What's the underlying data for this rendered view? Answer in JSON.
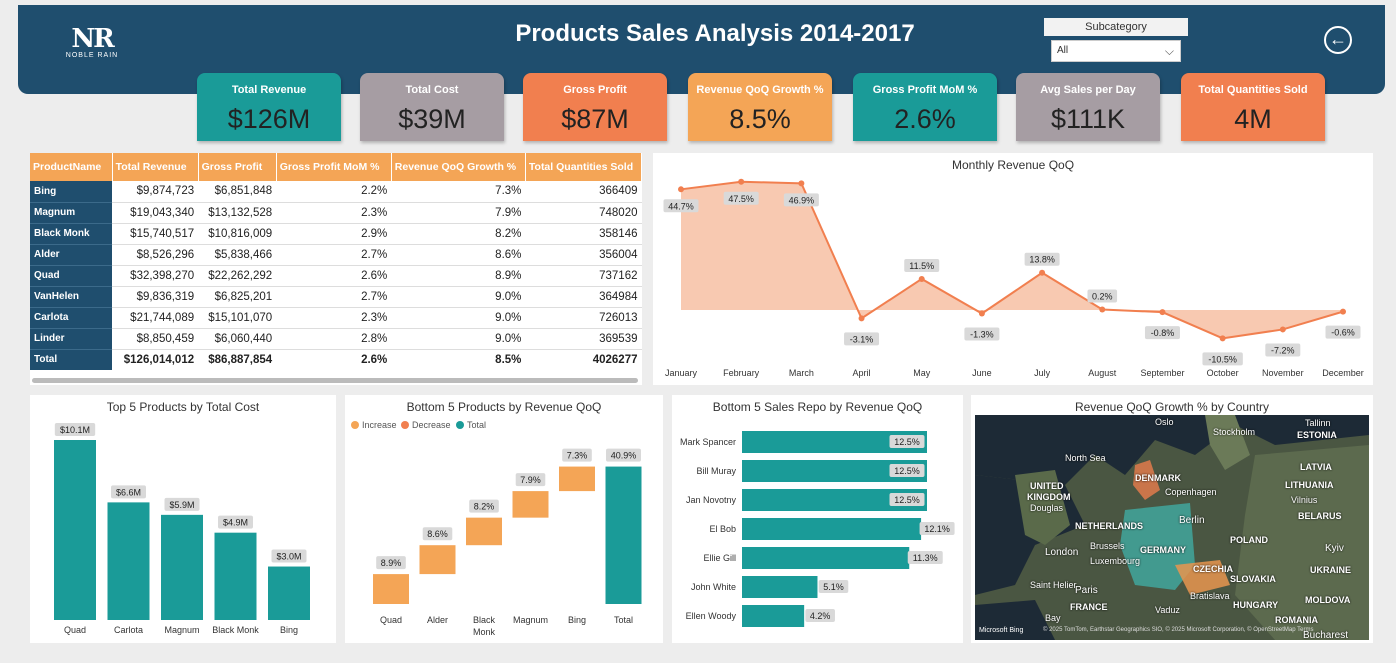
{
  "header": {
    "title": "Products Sales Analysis 2014-2017",
    "logo_text": "NOBLE RAIN",
    "subcategory_label": "Subcategory",
    "subcategory_value": "All",
    "colors": {
      "header": "#1f4e6e",
      "teal": "#1a9b98",
      "orange": "#f17f4f",
      "gray": "#a69da3",
      "light_orange": "#f4a556"
    }
  },
  "kpis": [
    {
      "label": "Total Revenue",
      "value": "$126M",
      "color": "#1a9b98"
    },
    {
      "label": "Total Cost",
      "value": "$39M",
      "color": "#a69da3"
    },
    {
      "label": "Gross Profit",
      "value": "$87M",
      "color": "#f17f4f"
    },
    {
      "label": "Revenue QoQ Growth %",
      "value": "8.5%",
      "color": "#f4a556"
    },
    {
      "label": "Gross Profit MoM %",
      "value": "2.6%",
      "color": "#1a9b98"
    },
    {
      "label": "Avg Sales per Day",
      "value": "$111K",
      "color": "#a69da3"
    },
    {
      "label": "Total Quantities Sold",
      "value": "4M",
      "color": "#f17f4f"
    }
  ],
  "table": {
    "columns": [
      "ProductName",
      "Total Revenue",
      "Gross Profit",
      "Gross Profit MoM %",
      "Revenue QoQ Growth %",
      "Total Quantities Sold"
    ],
    "rows": [
      [
        "Bing",
        "$9,874,723",
        "$6,851,848",
        "2.2%",
        "7.3%",
        "366409"
      ],
      [
        "Magnum",
        "$19,043,340",
        "$13,132,528",
        "2.3%",
        "7.9%",
        "748020"
      ],
      [
        "Black Monk",
        "$15,740,517",
        "$10,816,009",
        "2.9%",
        "8.2%",
        "358146"
      ],
      [
        "Alder",
        "$8,526,296",
        "$5,838,466",
        "2.7%",
        "8.6%",
        "356004"
      ],
      [
        "Quad",
        "$32,398,270",
        "$22,262,292",
        "2.6%",
        "8.9%",
        "737162"
      ],
      [
        "VanHelen",
        "$9,836,319",
        "$6,825,201",
        "2.7%",
        "9.0%",
        "364984"
      ],
      [
        "Carlota",
        "$21,744,089",
        "$15,101,070",
        "2.3%",
        "9.0%",
        "726013"
      ],
      [
        "Linder",
        "$8,850,459",
        "$6,060,440",
        "2.8%",
        "9.0%",
        "369539"
      ]
    ],
    "total": [
      "Total",
      "$126,014,012",
      "$86,887,854",
      "2.6%",
      "8.5%",
      "4026277"
    ]
  },
  "chart_data": [
    {
      "type": "area",
      "title": "Monthly Revenue QoQ",
      "categories": [
        "January",
        "February",
        "March",
        "April",
        "May",
        "June",
        "July",
        "August",
        "September",
        "October",
        "November",
        "December"
      ],
      "values": [
        44.7,
        47.5,
        46.9,
        -3.1,
        11.5,
        -1.3,
        13.8,
        0.2,
        -0.8,
        -10.5,
        -7.2,
        -0.6
      ],
      "labels": [
        "44.7%",
        "47.5%",
        "46.9%",
        "-3.1%",
        "11.5%",
        "-1.3%",
        "13.8%",
        "0.2%",
        "-0.8%",
        "-10.5%",
        "-7.2%",
        "-0.6%"
      ],
      "color": "#f17f4f"
    },
    {
      "type": "bar",
      "title": "Top 5 Products by Total Cost",
      "categories": [
        "Quad",
        "Carlota",
        "Magnum",
        "Black Monk",
        "Bing"
      ],
      "values": [
        10.1,
        6.6,
        5.9,
        4.9,
        3.0
      ],
      "labels": [
        "$10.1M",
        "$6.6M",
        "$5.9M",
        "$4.9M",
        "$3.0M"
      ],
      "color": "#1a9b98"
    },
    {
      "type": "bar",
      "subtype": "waterfall",
      "title": "Bottom 5 Products by Revenue QoQ",
      "legend": [
        "Increase",
        "Decrease",
        "Total"
      ],
      "legend_colors": [
        "#f4a556",
        "#f17f4f",
        "#1a9b98"
      ],
      "categories": [
        "Quad",
        "Alder",
        "Black Monk",
        "Magnum",
        "Bing",
        "Total"
      ],
      "values": [
        8.9,
        8.6,
        8.2,
        7.9,
        7.3,
        40.9
      ],
      "labels": [
        "8.9%",
        "8.6%",
        "8.2%",
        "7.9%",
        "7.3%",
        "40.9%"
      ]
    },
    {
      "type": "bar",
      "orientation": "horizontal",
      "title": "Bottom 5 Sales Repo by Revenue QoQ",
      "categories": [
        "Mark Spancer",
        "Bill Muray",
        "Jan Novotny",
        "El Bob",
        "Ellie Gill",
        "John White",
        "Ellen Woody"
      ],
      "values": [
        12.5,
        12.5,
        12.5,
        12.1,
        11.3,
        5.1,
        4.2
      ],
      "labels": [
        "12.5%",
        "12.5%",
        "12.5%",
        "12.1%",
        "11.3%",
        "5.1%",
        "4.2%"
      ],
      "color": "#1a9b98"
    }
  ],
  "map": {
    "title": "Revenue QoQ Growth % by Country",
    "labels": [
      "Oslo",
      "Stockholm",
      "Tallinn",
      "ESTONIA",
      "North Sea",
      "LATVIA",
      "DENMARK",
      "LITHUANIA",
      "UNITED",
      "KINGDOM",
      "Copenhagen",
      "Vilnius",
      "Douglas",
      "Berlin",
      "NETHERLANDS",
      "BELARUS",
      "Brussels",
      "GERMANY",
      "POLAND",
      "London",
      "Luxembourg",
      "Kyiv",
      "CZECHIA",
      "Paris",
      "SLOVAKIA",
      "UKRAINE",
      "Saint Helier",
      "Bratislava",
      "FRANCE",
      "HUNGARY",
      "MOLDOVA",
      "ROMANIA",
      "Vaduz",
      "Bay",
      "Bucharest"
    ],
    "attribution": "© 2025 TomTom, Earthstar Geographics SIO, © 2025 Microsoft Corporation, © OpenStreetMap  Terms",
    "ms_label": "Microsoft Bing"
  }
}
